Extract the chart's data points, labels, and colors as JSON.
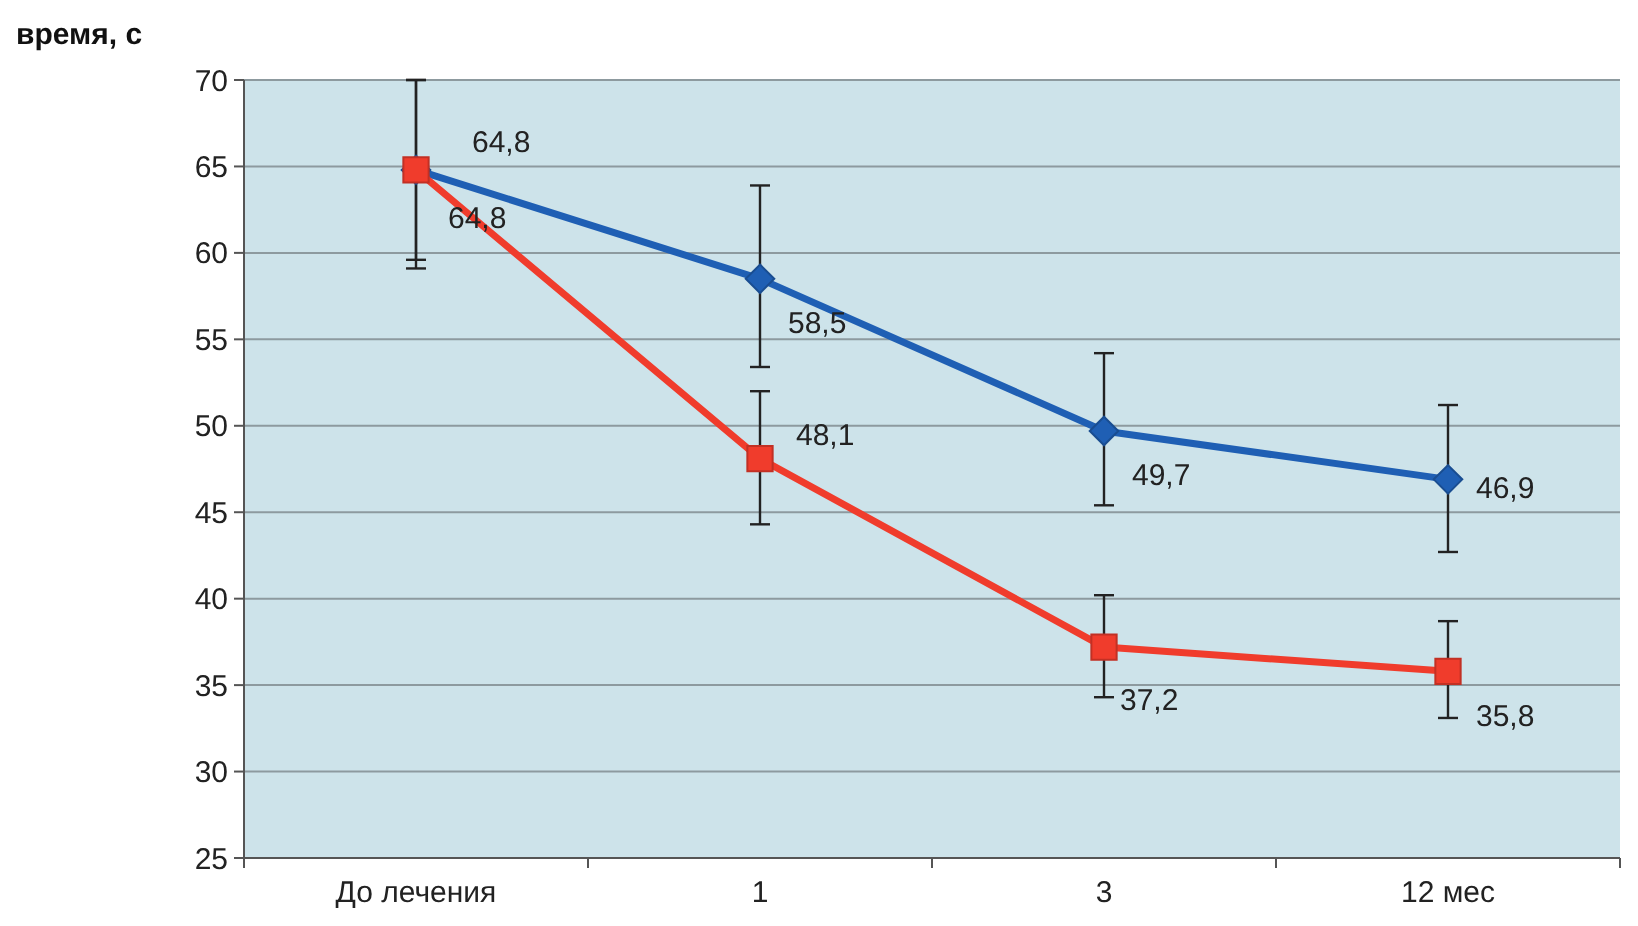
{
  "chart_data": {
    "type": "line",
    "ylabel": "время, с",
    "categories": [
      "До лечения",
      "1",
      "3",
      "12 мес"
    ],
    "ylim": [
      25,
      70
    ],
    "yticks": [
      25,
      30,
      35,
      40,
      45,
      50,
      55,
      60,
      65,
      70
    ],
    "grid": "y",
    "line_style": "solid",
    "series": [
      {
        "color": "#1f5fb4",
        "marker": "diamond",
        "values": [
          64.8,
          58.5,
          49.7,
          46.9
        ],
        "value_labels": [
          "64,8",
          "58,5",
          "49,7",
          "46,9"
        ],
        "errors": [
          [
            59.1,
            70
          ],
          [
            53.4,
            63.9
          ],
          [
            45.4,
            54.2
          ],
          [
            42.7,
            51.2
          ]
        ]
      },
      {
        "color": "#f03c2c",
        "marker": "square",
        "values": [
          64.8,
          48.1,
          37.2,
          35.8
        ],
        "value_labels": [
          "64,8",
          "48,1",
          "37,2",
          "35,8"
        ],
        "errors": [
          [
            59.6,
            70
          ],
          [
            44.3,
            52.0
          ],
          [
            34.3,
            40.2
          ],
          [
            33.1,
            38.7
          ]
        ]
      }
    ]
  }
}
